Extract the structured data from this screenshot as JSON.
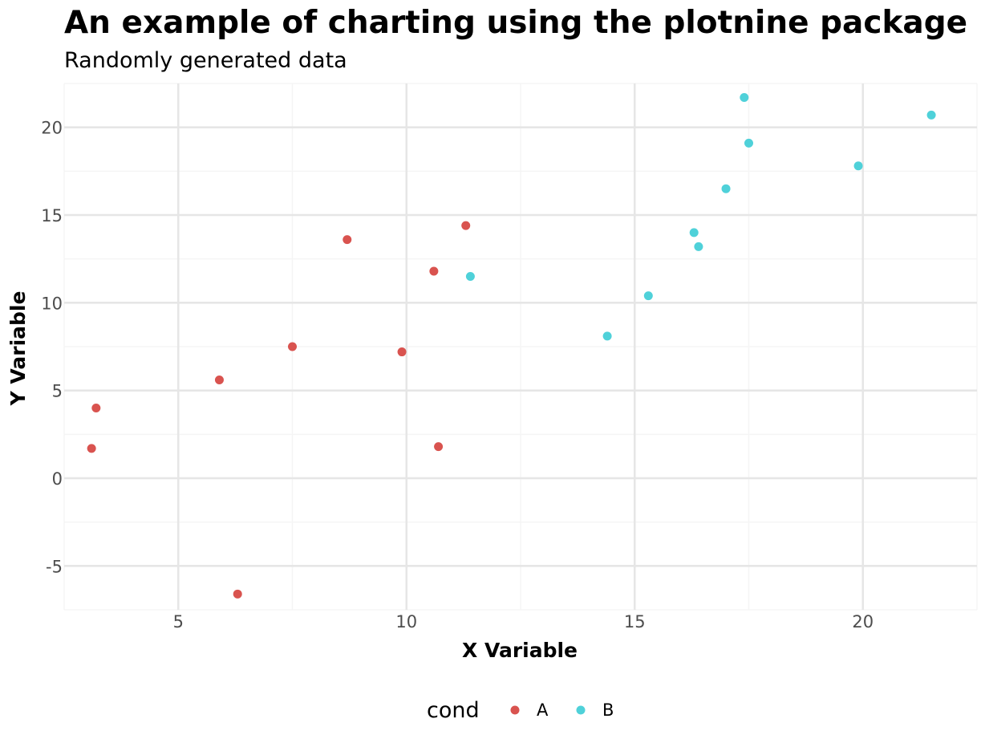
{
  "chart_data": {
    "type": "scatter",
    "title": "An example of charting using the plotnine package",
    "subtitle": "Randomly generated data",
    "xlabel": "X Variable",
    "ylabel": "Y Variable",
    "xlim": [
      2.5,
      22.5
    ],
    "ylim": [
      -7.5,
      22.5
    ],
    "x_ticks": [
      5,
      10,
      15,
      20
    ],
    "x_tick_labels": [
      "5",
      "10",
      "15",
      "20"
    ],
    "y_ticks": [
      -5,
      0,
      5,
      10,
      15,
      20
    ],
    "y_tick_labels": [
      "-5",
      "0",
      "5",
      "10",
      "15",
      "20"
    ],
    "grid": true,
    "legend_position": "bottom",
    "legend_title": "cond",
    "series": [
      {
        "name": "A",
        "color": "#d9534f",
        "points": [
          {
            "x": 3.1,
            "y": 1.7
          },
          {
            "x": 3.2,
            "y": 4.0
          },
          {
            "x": 5.9,
            "y": 5.6
          },
          {
            "x": 6.3,
            "y": -6.6
          },
          {
            "x": 7.5,
            "y": 7.5
          },
          {
            "x": 8.7,
            "y": 13.6
          },
          {
            "x": 9.9,
            "y": 7.2
          },
          {
            "x": 10.6,
            "y": 11.8
          },
          {
            "x": 10.7,
            "y": 1.8
          },
          {
            "x": 11.3,
            "y": 14.4
          }
        ]
      },
      {
        "name": "B",
        "color": "#4fd1d9",
        "points": [
          {
            "x": 11.4,
            "y": 11.5
          },
          {
            "x": 14.4,
            "y": 8.1
          },
          {
            "x": 15.3,
            "y": 10.4
          },
          {
            "x": 16.3,
            "y": 14.0
          },
          {
            "x": 16.4,
            "y": 13.2
          },
          {
            "x": 17.0,
            "y": 16.5
          },
          {
            "x": 17.4,
            "y": 21.7
          },
          {
            "x": 17.5,
            "y": 19.1
          },
          {
            "x": 19.9,
            "y": 17.8
          },
          {
            "x": 21.5,
            "y": 20.7
          }
        ]
      }
    ]
  }
}
